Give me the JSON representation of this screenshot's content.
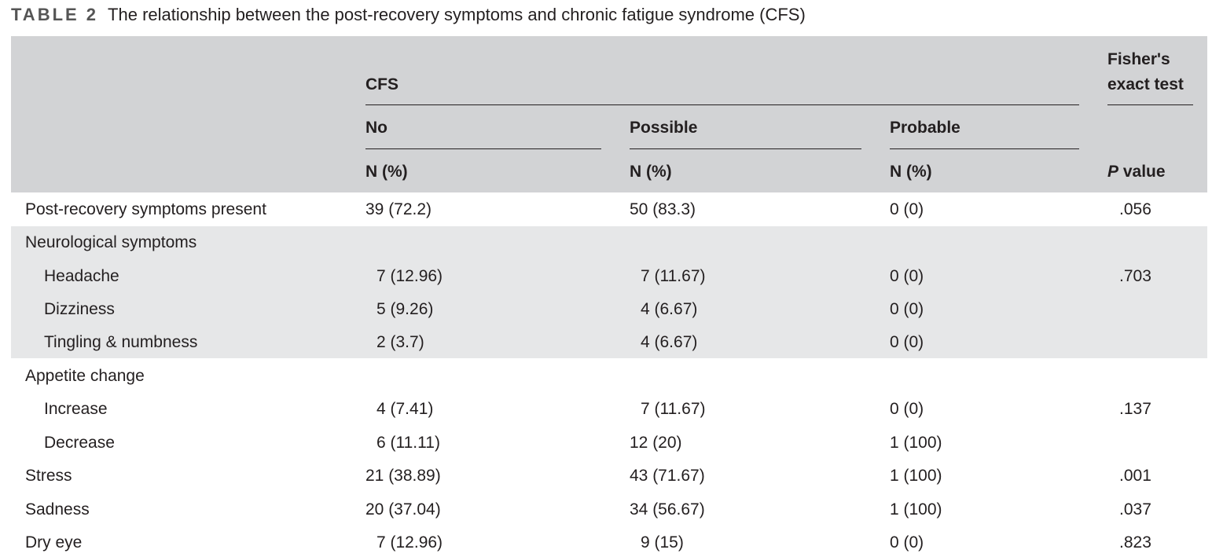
{
  "caption": {
    "label": "TABLE 2",
    "title": "The relationship between the post-recovery symptoms and chronic fatigue syndrome (CFS)"
  },
  "header": {
    "group": "CFS",
    "no": "No",
    "possible": "Possible",
    "probable": "Probable",
    "test_line1": "Fisher's",
    "test_line2": "exact test",
    "n_pct": "N (%)",
    "p_italic": "P",
    "p_rest": " value"
  },
  "rows": [
    {
      "label": "Post-recovery symptoms present",
      "no": "39 (72.2)",
      "possible": "50 (83.3)",
      "probable": "0 (0)",
      "p": ".056"
    },
    {
      "label": "Neurological symptoms",
      "no": "",
      "possible": "",
      "probable": "",
      "p": ""
    },
    {
      "label": "Headache",
      "no": "7 (12.96)",
      "possible": "7 (11.67)",
      "probable": "0 (0)",
      "p": ".703"
    },
    {
      "label": "Dizziness",
      "no": "5 (9.26)",
      "possible": "4 (6.67)",
      "probable": "0 (0)",
      "p": ""
    },
    {
      "label": "Tingling & numbness",
      "no": "2 (3.7)",
      "possible": "4 (6.67)",
      "probable": "0 (0)",
      "p": ""
    },
    {
      "label": "Appetite change",
      "no": "",
      "possible": "",
      "probable": "",
      "p": ""
    },
    {
      "label": "Increase",
      "no": "4 (7.41)",
      "possible": "7 (11.67)",
      "probable": "0 (0)",
      "p": ".137"
    },
    {
      "label": "Decrease",
      "no": "6 (11.11)",
      "possible": "12 (20)",
      "probable": "1 (100)",
      "p": ""
    },
    {
      "label": "Stress",
      "no": "21 (38.89)",
      "possible": "43 (71.67)",
      "probable": "1 (100)",
      "p": ".001"
    },
    {
      "label": "Sadness",
      "no": "20 (37.04)",
      "possible": "34 (56.67)",
      "probable": "1 (100)",
      "p": ".037"
    },
    {
      "label": "Dry eye",
      "no": "7 (12.96)",
      "possible": "9 (15)",
      "probable": "0 (0)",
      "p": ".823"
    }
  ]
}
